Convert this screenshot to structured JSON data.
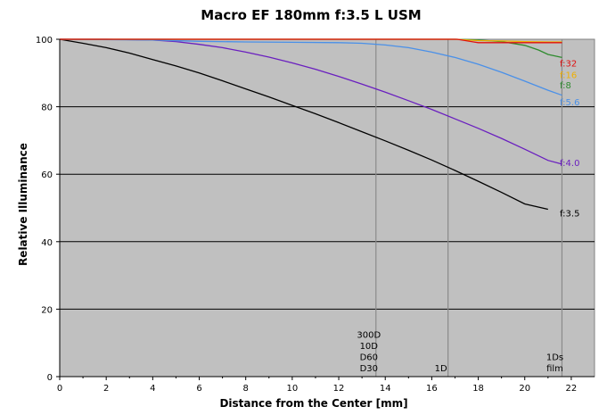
{
  "chart_data": {
    "type": "line",
    "title": "Macro EF 180mm f:3.5 L USM",
    "xlabel": "Distance from the Center [mm]",
    "ylabel": "Relative Illuminance",
    "xlim": [
      0,
      23
    ],
    "ylim": [
      0,
      100
    ],
    "x_ticks": [
      "0",
      "2",
      "4",
      "6",
      "8",
      "10",
      "12",
      "14",
      "16",
      "18",
      "20",
      "22"
    ],
    "y_ticks": [
      "0",
      "20",
      "40",
      "60",
      "80",
      "100"
    ],
    "grid": "horizontal",
    "sensor_lines": [
      {
        "x": 13.6,
        "labels": [
          "300D",
          "10D",
          "D60",
          "D30"
        ]
      },
      {
        "x": 16.7,
        "labels": [
          "1D"
        ]
      },
      {
        "x": 21.6,
        "labels": [
          "1Ds",
          "film"
        ]
      }
    ],
    "series": [
      {
        "name": "f:3.5",
        "color": "#000000",
        "label_y": 48.5,
        "points": [
          [
            0,
            100
          ],
          [
            1,
            98.8
          ],
          [
            2,
            97.5
          ],
          [
            3,
            95.9
          ],
          [
            4,
            94
          ],
          [
            5,
            92.1
          ],
          [
            6,
            90
          ],
          [
            7,
            87.7
          ],
          [
            8,
            85.3
          ],
          [
            9,
            82.9
          ],
          [
            10,
            80.4
          ],
          [
            11,
            77.9
          ],
          [
            12,
            75.3
          ],
          [
            13,
            72.6
          ],
          [
            14,
            69.9
          ],
          [
            15,
            67.1
          ],
          [
            16,
            64.2
          ],
          [
            17,
            61.1
          ],
          [
            18,
            57.9
          ],
          [
            19,
            54.6
          ],
          [
            20,
            51.2
          ],
          [
            21,
            49.6
          ]
        ]
      },
      {
        "name": "f:4.0",
        "color": "#6a1fbf",
        "label_y": 63.5,
        "points": [
          [
            0,
            100
          ],
          [
            2,
            100
          ],
          [
            4,
            99.8
          ],
          [
            5,
            99.3
          ],
          [
            6,
            98.5
          ],
          [
            7,
            97.5
          ],
          [
            8,
            96.2
          ],
          [
            9,
            94.7
          ],
          [
            10,
            93
          ],
          [
            11,
            91.1
          ],
          [
            12,
            89
          ],
          [
            13,
            86.7
          ],
          [
            14,
            84.3
          ],
          [
            15,
            81.8
          ],
          [
            16,
            79.2
          ],
          [
            17,
            76.4
          ],
          [
            18,
            73.6
          ],
          [
            19,
            70.6
          ],
          [
            20,
            67.4
          ],
          [
            21,
            64.1
          ],
          [
            21.6,
            63
          ]
        ]
      },
      {
        "name": "f:5.6",
        "color": "#4a90e8",
        "label_y": 81.5,
        "points": [
          [
            0,
            100
          ],
          [
            4,
            99.8
          ],
          [
            6,
            99.4
          ],
          [
            8,
            99.2
          ],
          [
            10,
            99.1
          ],
          [
            12,
            99
          ],
          [
            13,
            98.8
          ],
          [
            14,
            98.3
          ],
          [
            15,
            97.5
          ],
          [
            16,
            96.2
          ],
          [
            17,
            94.6
          ],
          [
            18,
            92.6
          ],
          [
            19,
            90.2
          ],
          [
            20,
            87.6
          ],
          [
            21,
            84.9
          ],
          [
            21.6,
            83.4
          ]
        ]
      },
      {
        "name": "f:8",
        "color": "#2e8b2e",
        "label_y": 86.5,
        "points": [
          [
            0,
            100
          ],
          [
            16,
            100
          ],
          [
            17,
            100
          ],
          [
            18,
            99.8
          ],
          [
            19,
            99.3
          ],
          [
            20,
            98.2
          ],
          [
            20.6,
            96.8
          ],
          [
            21,
            95.5
          ],
          [
            21.6,
            94.6
          ]
        ]
      },
      {
        "name": "f:16",
        "color": "#f0b000",
        "label_y": 89.5,
        "points": [
          [
            0,
            100
          ],
          [
            17,
            100
          ],
          [
            18,
            99.6
          ],
          [
            19,
            99.5
          ],
          [
            20,
            99.3
          ],
          [
            21,
            99.2
          ],
          [
            21.6,
            99.2
          ]
        ]
      },
      {
        "name": "f:32",
        "color": "#e01010",
        "label_y": 93,
        "points": [
          [
            0,
            100
          ],
          [
            17.1,
            100
          ],
          [
            17.8,
            99.2
          ],
          [
            18,
            99
          ],
          [
            19,
            99
          ],
          [
            20,
            99
          ],
          [
            21,
            99
          ],
          [
            21.6,
            99
          ]
        ]
      }
    ]
  }
}
